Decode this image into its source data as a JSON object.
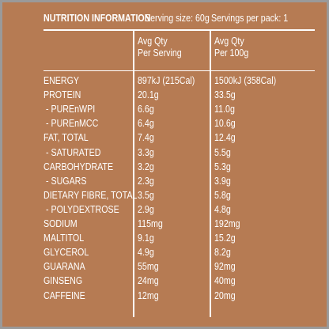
{
  "header": {
    "title": "NUTRITION INFORMATION",
    "serving_size": "Serving size: 60g",
    "servings_per_pack": "Servings per pack: 1"
  },
  "table": {
    "columns": [
      [
        "Avg Qty",
        "Per Serving"
      ],
      [
        "Avg Qty",
        "Per 100g"
      ]
    ],
    "rows": [
      [
        "ENERGY",
        "897kJ (215Cal)",
        "1500kJ (358Cal)"
      ],
      [
        "PROTEIN",
        "20.1g",
        "33.5g"
      ],
      [
        " - PURЕnWPI",
        "6.6g",
        "11.0g"
      ],
      [
        " - PURЕnMCC",
        "6.4g",
        "10.6g"
      ],
      [
        "FAT, TOTAL",
        "7.4g",
        "12.4g"
      ],
      [
        " - SATURATED",
        "3.3g",
        "5.5g"
      ],
      [
        "CARBOHYDRATE",
        "3.2g",
        "5.3g"
      ],
      [
        " - SUGARS",
        "2.3g",
        "3.9g"
      ],
      [
        "DIETARY FIBRE, TOTAL",
        "3.5g",
        "5.8g"
      ],
      [
        " - POLYDEXTROSE",
        "2.9g",
        "4.8g"
      ],
      [
        "SODIUM",
        "115mg",
        "192mg"
      ],
      [
        "MALTITOL",
        "9.1g",
        "15.2g"
      ],
      [
        "GLYCEROL",
        "4.9g",
        "8.2g"
      ],
      [
        "GUARANA",
        "55mg",
        "92mg"
      ],
      [
        "GINSENG",
        "24mg",
        "40mg"
      ],
      [
        "CAFFEINE",
        "12mg",
        "20mg"
      ]
    ]
  }
}
